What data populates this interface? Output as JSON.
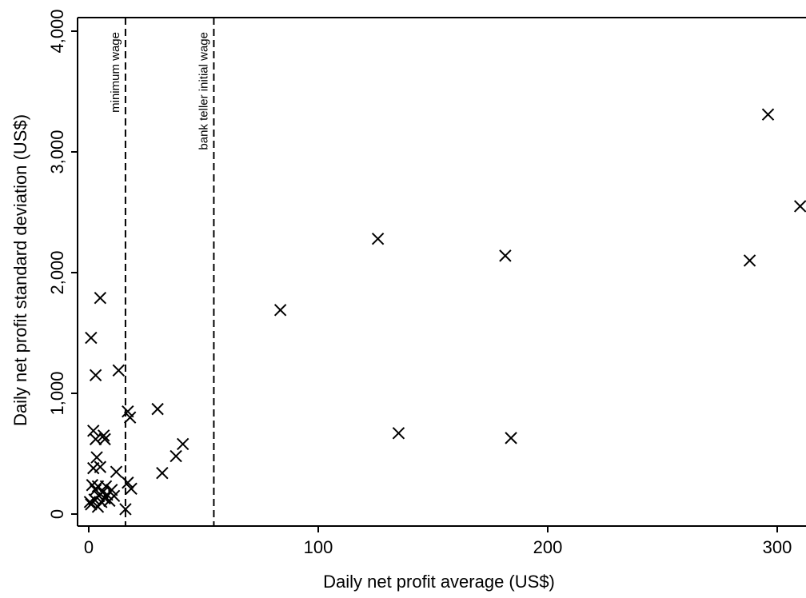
{
  "chart_data": {
    "type": "scatter",
    "xlabel": "Daily net profit average (US$)",
    "ylabel": "Daily net profit standard deviation (US$)",
    "xlim": [
      0,
      310
    ],
    "ylim": [
      0,
      4000
    ],
    "x_ticks": [
      0,
      100,
      200,
      300
    ],
    "x_tick_labels": [
      "0",
      "100",
      "200",
      "300"
    ],
    "y_ticks": [
      0,
      1000,
      2000,
      3000,
      4000
    ],
    "y_tick_labels": [
      "0",
      "1,000",
      "2,000",
      "3,000",
      "4,000"
    ],
    "marker": "x",
    "reference_lines": [
      {
        "label": "minimum wage",
        "x": 16
      },
      {
        "label": "bank teller initial wage",
        "x": 54.5
      }
    ],
    "points": [
      {
        "x": 0.5,
        "y": 100
      },
      {
        "x": 1,
        "y": 80
      },
      {
        "x": 1.5,
        "y": 240
      },
      {
        "x": 1,
        "y": 1460
      },
      {
        "x": 2,
        "y": 690
      },
      {
        "x": 2,
        "y": 380
      },
      {
        "x": 2.5,
        "y": 120
      },
      {
        "x": 3,
        "y": 1150
      },
      {
        "x": 3,
        "y": 200
      },
      {
        "x": 3,
        "y": 620
      },
      {
        "x": 3.5,
        "y": 470
      },
      {
        "x": 4,
        "y": 60
      },
      {
        "x": 4,
        "y": 230
      },
      {
        "x": 4.5,
        "y": 150
      },
      {
        "x": 5,
        "y": 1790
      },
      {
        "x": 5,
        "y": 390
      },
      {
        "x": 5.5,
        "y": 100
      },
      {
        "x": 6,
        "y": 180
      },
      {
        "x": 6.5,
        "y": 650
      },
      {
        "x": 7,
        "y": 620
      },
      {
        "x": 7,
        "y": 130
      },
      {
        "x": 7.5,
        "y": 230
      },
      {
        "x": 8,
        "y": 160
      },
      {
        "x": 9,
        "y": 110
      },
      {
        "x": 10,
        "y": 200
      },
      {
        "x": 11,
        "y": 150
      },
      {
        "x": 12,
        "y": 350
      },
      {
        "x": 13,
        "y": 1190
      },
      {
        "x": 16,
        "y": 40
      },
      {
        "x": 17,
        "y": 850
      },
      {
        "x": 17,
        "y": 260
      },
      {
        "x": 18,
        "y": 800
      },
      {
        "x": 18.5,
        "y": 210
      },
      {
        "x": 30,
        "y": 870
      },
      {
        "x": 32,
        "y": 340
      },
      {
        "x": 38,
        "y": 480
      },
      {
        "x": 41,
        "y": 580
      },
      {
        "x": 83.5,
        "y": 1690
      },
      {
        "x": 126,
        "y": 2280
      },
      {
        "x": 135,
        "y": 670
      },
      {
        "x": 181.5,
        "y": 2140
      },
      {
        "x": 184,
        "y": 630
      },
      {
        "x": 288,
        "y": 2100
      },
      {
        "x": 296,
        "y": 3310
      },
      {
        "x": 310,
        "y": 2550
      }
    ]
  }
}
